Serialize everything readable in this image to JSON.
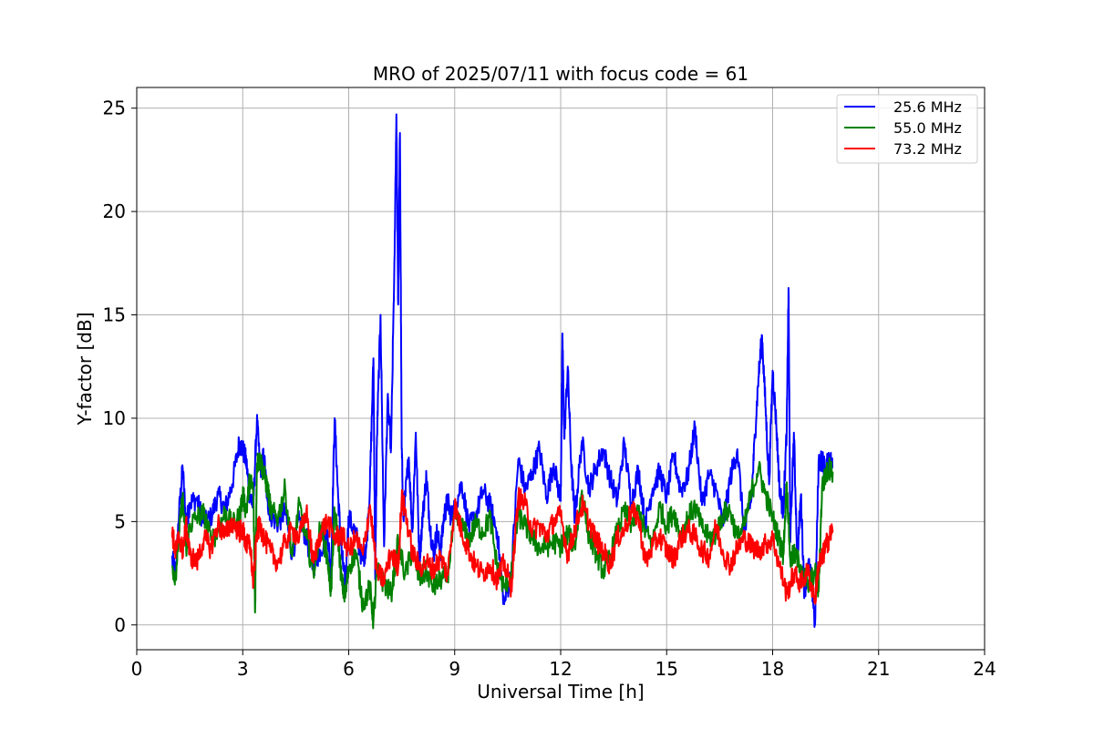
{
  "chart_data": {
    "type": "line",
    "title": "MRO of 2025/07/11 with focus code = 61",
    "xlabel": "Universal Time [h]",
    "ylabel": "Y-factor [dB]",
    "xlim": [
      0,
      24
    ],
    "ylim": [
      -1.2,
      26
    ],
    "xticks": [
      0,
      3,
      6,
      9,
      12,
      15,
      18,
      21,
      24
    ],
    "yticks": [
      0,
      5,
      10,
      15,
      20,
      25
    ],
    "grid": true,
    "legend_position": "top-right",
    "series": [
      {
        "name": "25.6 MHz",
        "color": "#0000ff",
        "x": [
          1.0,
          1.1,
          1.2,
          1.3,
          1.4,
          1.5,
          1.7,
          1.9,
          2.1,
          2.3,
          2.5,
          2.7,
          2.9,
          3.0,
          3.1,
          3.2,
          3.3,
          3.4,
          3.5,
          3.6,
          3.7,
          3.8,
          4.0,
          4.2,
          4.4,
          4.6,
          4.8,
          5.0,
          5.2,
          5.4,
          5.5,
          5.6,
          5.7,
          5.8,
          5.9,
          6.0,
          6.2,
          6.4,
          6.5,
          6.6,
          6.7,
          6.75,
          6.8,
          6.9,
          7.0,
          7.1,
          7.2,
          7.3,
          7.35,
          7.4,
          7.45,
          7.5,
          7.55,
          7.6,
          7.7,
          7.8,
          7.9,
          8.0,
          8.1,
          8.2,
          8.3,
          8.4,
          8.5,
          8.6,
          8.7,
          8.8,
          8.9,
          9.0,
          9.2,
          9.4,
          9.6,
          9.8,
          10.0,
          10.2,
          10.4,
          10.6,
          10.8,
          11.0,
          11.2,
          11.4,
          11.6,
          11.8,
          12.0,
          12.05,
          12.1,
          12.2,
          12.3,
          12.4,
          12.6,
          12.8,
          13.0,
          13.2,
          13.4,
          13.6,
          13.8,
          14.0,
          14.2,
          14.4,
          14.6,
          14.8,
          15.0,
          15.2,
          15.4,
          15.6,
          15.8,
          16.0,
          16.2,
          16.4,
          16.6,
          16.8,
          17.0,
          17.2,
          17.4,
          17.5,
          17.6,
          17.7,
          17.8,
          17.9,
          18.0,
          18.1,
          18.2,
          18.3,
          18.4,
          18.45,
          18.5,
          18.6,
          18.7,
          18.8,
          18.9,
          19.0,
          19.1,
          19.2,
          19.3,
          19.4,
          19.5,
          19.6,
          19.7
        ],
        "y": [
          3.2,
          2.5,
          5.5,
          7.6,
          4.8,
          5.9,
          6.1,
          4.9,
          5.2,
          6.3,
          5.6,
          6.8,
          8.8,
          8.5,
          7.9,
          6.2,
          5.8,
          9.9,
          7.5,
          8.2,
          6.0,
          5.3,
          4.9,
          5.5,
          3.4,
          5.1,
          4.2,
          2.8,
          3.6,
          4.5,
          2.4,
          10.0,
          6.2,
          3.5,
          2.0,
          5.2,
          4.4,
          3.1,
          3.8,
          6.7,
          12.9,
          2.2,
          9.1,
          15.0,
          3.8,
          10.8,
          8.6,
          18.0,
          24.7,
          15.5,
          23.8,
          8.5,
          5.1,
          6.2,
          8.1,
          4.5,
          9.3,
          3.1,
          5.4,
          7.2,
          4.8,
          3.4,
          4.5,
          3.5,
          5.3,
          6.0,
          5.2,
          5.6,
          6.9,
          4.7,
          5.3,
          6.5,
          5.8,
          4.5,
          1.0,
          2.5,
          8.0,
          6.5,
          7.4,
          8.5,
          6.2,
          7.8,
          6.0,
          14.1,
          9.0,
          12.5,
          7.7,
          5.2,
          8.9,
          6.6,
          7.6,
          8.5,
          7.1,
          6.0,
          8.8,
          5.9,
          7.5,
          4.9,
          6.6,
          7.4,
          6.2,
          8.2,
          6.5,
          7.2,
          9.6,
          5.8,
          7.3,
          6.5,
          4.8,
          7.1,
          8.5,
          4.4,
          6.1,
          9.2,
          12.0,
          14.0,
          10.5,
          6.8,
          12.3,
          9.8,
          6.5,
          5.5,
          9.5,
          16.3,
          4.0,
          9.3,
          3.2,
          6.3,
          1.5,
          3.0,
          2.2,
          0.0,
          7.9,
          8.0,
          7.4,
          8.2,
          7.6
        ]
      },
      {
        "name": "55.0 MHz",
        "color": "#008000",
        "x": [
          1.0,
          1.1,
          1.2,
          1.3,
          1.4,
          1.5,
          1.7,
          1.9,
          2.1,
          2.3,
          2.5,
          2.7,
          2.9,
          3.0,
          3.1,
          3.2,
          3.3,
          3.35,
          3.4,
          3.5,
          3.6,
          3.7,
          3.8,
          4.0,
          4.2,
          4.4,
          4.6,
          4.8,
          5.0,
          5.2,
          5.4,
          5.5,
          5.6,
          5.7,
          5.8,
          5.9,
          6.0,
          6.2,
          6.4,
          6.6,
          6.7,
          6.8,
          7.0,
          7.2,
          7.4,
          7.6,
          7.8,
          8.0,
          8.2,
          8.4,
          8.6,
          8.8,
          9.0,
          9.2,
          9.4,
          9.6,
          9.8,
          10.0,
          10.2,
          10.4,
          10.6,
          10.8,
          11.0,
          11.2,
          11.4,
          11.6,
          11.8,
          12.0,
          12.2,
          12.4,
          12.6,
          12.8,
          13.0,
          13.2,
          13.4,
          13.6,
          13.8,
          14.0,
          14.2,
          14.4,
          14.6,
          14.8,
          15.0,
          15.2,
          15.4,
          15.6,
          15.8,
          16.0,
          16.2,
          16.4,
          16.6,
          16.8,
          17.0,
          17.2,
          17.4,
          17.6,
          17.8,
          18.0,
          18.2,
          18.3,
          18.4,
          18.5,
          18.6,
          18.8,
          19.0,
          19.2,
          19.3,
          19.4,
          19.5,
          19.6,
          19.7
        ],
        "y": [
          2.8,
          2.4,
          4.5,
          6.2,
          3.5,
          4.8,
          5.2,
          5.4,
          4.1,
          4.5,
          5.5,
          4.8,
          5.2,
          6.3,
          5.5,
          7.0,
          6.5,
          0.6,
          7.8,
          8.0,
          7.3,
          6.6,
          5.5,
          5.2,
          6.6,
          3.3,
          5.8,
          4.2,
          2.5,
          4.8,
          3.2,
          1.6,
          5.5,
          4.2,
          2.1,
          1.3,
          2.8,
          3.5,
          1.0,
          1.8,
          0.2,
          2.6,
          2.0,
          1.5,
          4.0,
          2.4,
          3.6,
          2.2,
          2.6,
          1.8,
          2.2,
          2.4,
          5.2,
          4.8,
          4.1,
          4.9,
          4.5,
          5.2,
          2.8,
          1.8,
          2.5,
          5.3,
          4.8,
          4.2,
          3.7,
          3.8,
          4.0,
          3.8,
          4.4,
          3.8,
          6.5,
          4.3,
          3.5,
          2.6,
          3.3,
          4.5,
          5.5,
          4.9,
          5.5,
          4.5,
          3.9,
          5.7,
          4.8,
          5.5,
          4.3,
          5.2,
          5.7,
          4.7,
          4.2,
          4.4,
          5.4,
          5.5,
          4.2,
          4.8,
          6.4,
          7.6,
          6.3,
          5.2,
          4.0,
          3.4,
          6.9,
          3.1,
          3.4,
          2.9,
          1.8,
          2.6,
          1.6,
          6.7,
          7.2,
          7.6,
          7.4
        ]
      },
      {
        "name": "73.2 MHz",
        "color": "#ff0000",
        "x": [
          1.0,
          1.1,
          1.2,
          1.3,
          1.4,
          1.5,
          1.7,
          1.9,
          2.1,
          2.3,
          2.5,
          2.7,
          2.9,
          3.0,
          3.1,
          3.2,
          3.3,
          3.4,
          3.5,
          3.6,
          3.8,
          4.0,
          4.2,
          4.4,
          4.6,
          4.8,
          5.0,
          5.2,
          5.4,
          5.6,
          5.8,
          6.0,
          6.2,
          6.4,
          6.6,
          6.8,
          7.0,
          7.2,
          7.4,
          7.5,
          7.6,
          7.8,
          8.0,
          8.2,
          8.4,
          8.6,
          8.8,
          9.0,
          9.2,
          9.4,
          9.6,
          9.8,
          10.0,
          10.2,
          10.4,
          10.6,
          10.8,
          11.0,
          11.2,
          11.4,
          11.6,
          11.8,
          12.0,
          12.2,
          12.4,
          12.6,
          12.8,
          13.0,
          13.2,
          13.4,
          13.6,
          13.8,
          14.0,
          14.2,
          14.4,
          14.6,
          14.8,
          15.0,
          15.2,
          15.4,
          15.6,
          15.8,
          16.0,
          16.2,
          16.4,
          16.6,
          16.8,
          17.0,
          17.2,
          17.4,
          17.6,
          17.8,
          18.0,
          18.2,
          18.4,
          18.6,
          18.8,
          19.0,
          19.2,
          19.3,
          19.4,
          19.5,
          19.6,
          19.7
        ],
        "y": [
          4.5,
          3.5,
          4.3,
          3.6,
          4.8,
          3.4,
          3.0,
          4.2,
          3.7,
          4.9,
          4.3,
          5.0,
          4.5,
          4.6,
          3.8,
          4.0,
          2.0,
          4.5,
          4.8,
          4.2,
          3.5,
          3.0,
          4.0,
          4.6,
          4.2,
          5.5,
          3.0,
          4.5,
          5.0,
          4.2,
          4.4,
          3.6,
          4.2,
          3.4,
          5.8,
          2.5,
          2.2,
          3.5,
          2.8,
          6.1,
          5.5,
          3.5,
          2.8,
          3.0,
          2.7,
          3.3,
          2.4,
          5.8,
          4.5,
          3.6,
          2.8,
          2.5,
          2.9,
          2.2,
          3.0,
          1.8,
          6.2,
          5.8,
          4.6,
          4.8,
          4.3,
          5.0,
          5.3,
          3.4,
          4.6,
          5.8,
          5.0,
          4.1,
          3.6,
          2.9,
          4.2,
          4.6,
          5.5,
          5.2,
          3.0,
          3.8,
          4.3,
          3.6,
          3.2,
          4.2,
          4.6,
          4.3,
          3.6,
          3.3,
          4.8,
          3.5,
          2.9,
          3.7,
          4.2,
          3.8,
          3.6,
          3.9,
          4.2,
          2.8,
          1.5,
          2.5,
          2.0,
          2.6,
          1.2,
          2.9,
          3.2,
          3.8,
          4.2,
          4.6
        ]
      }
    ]
  }
}
